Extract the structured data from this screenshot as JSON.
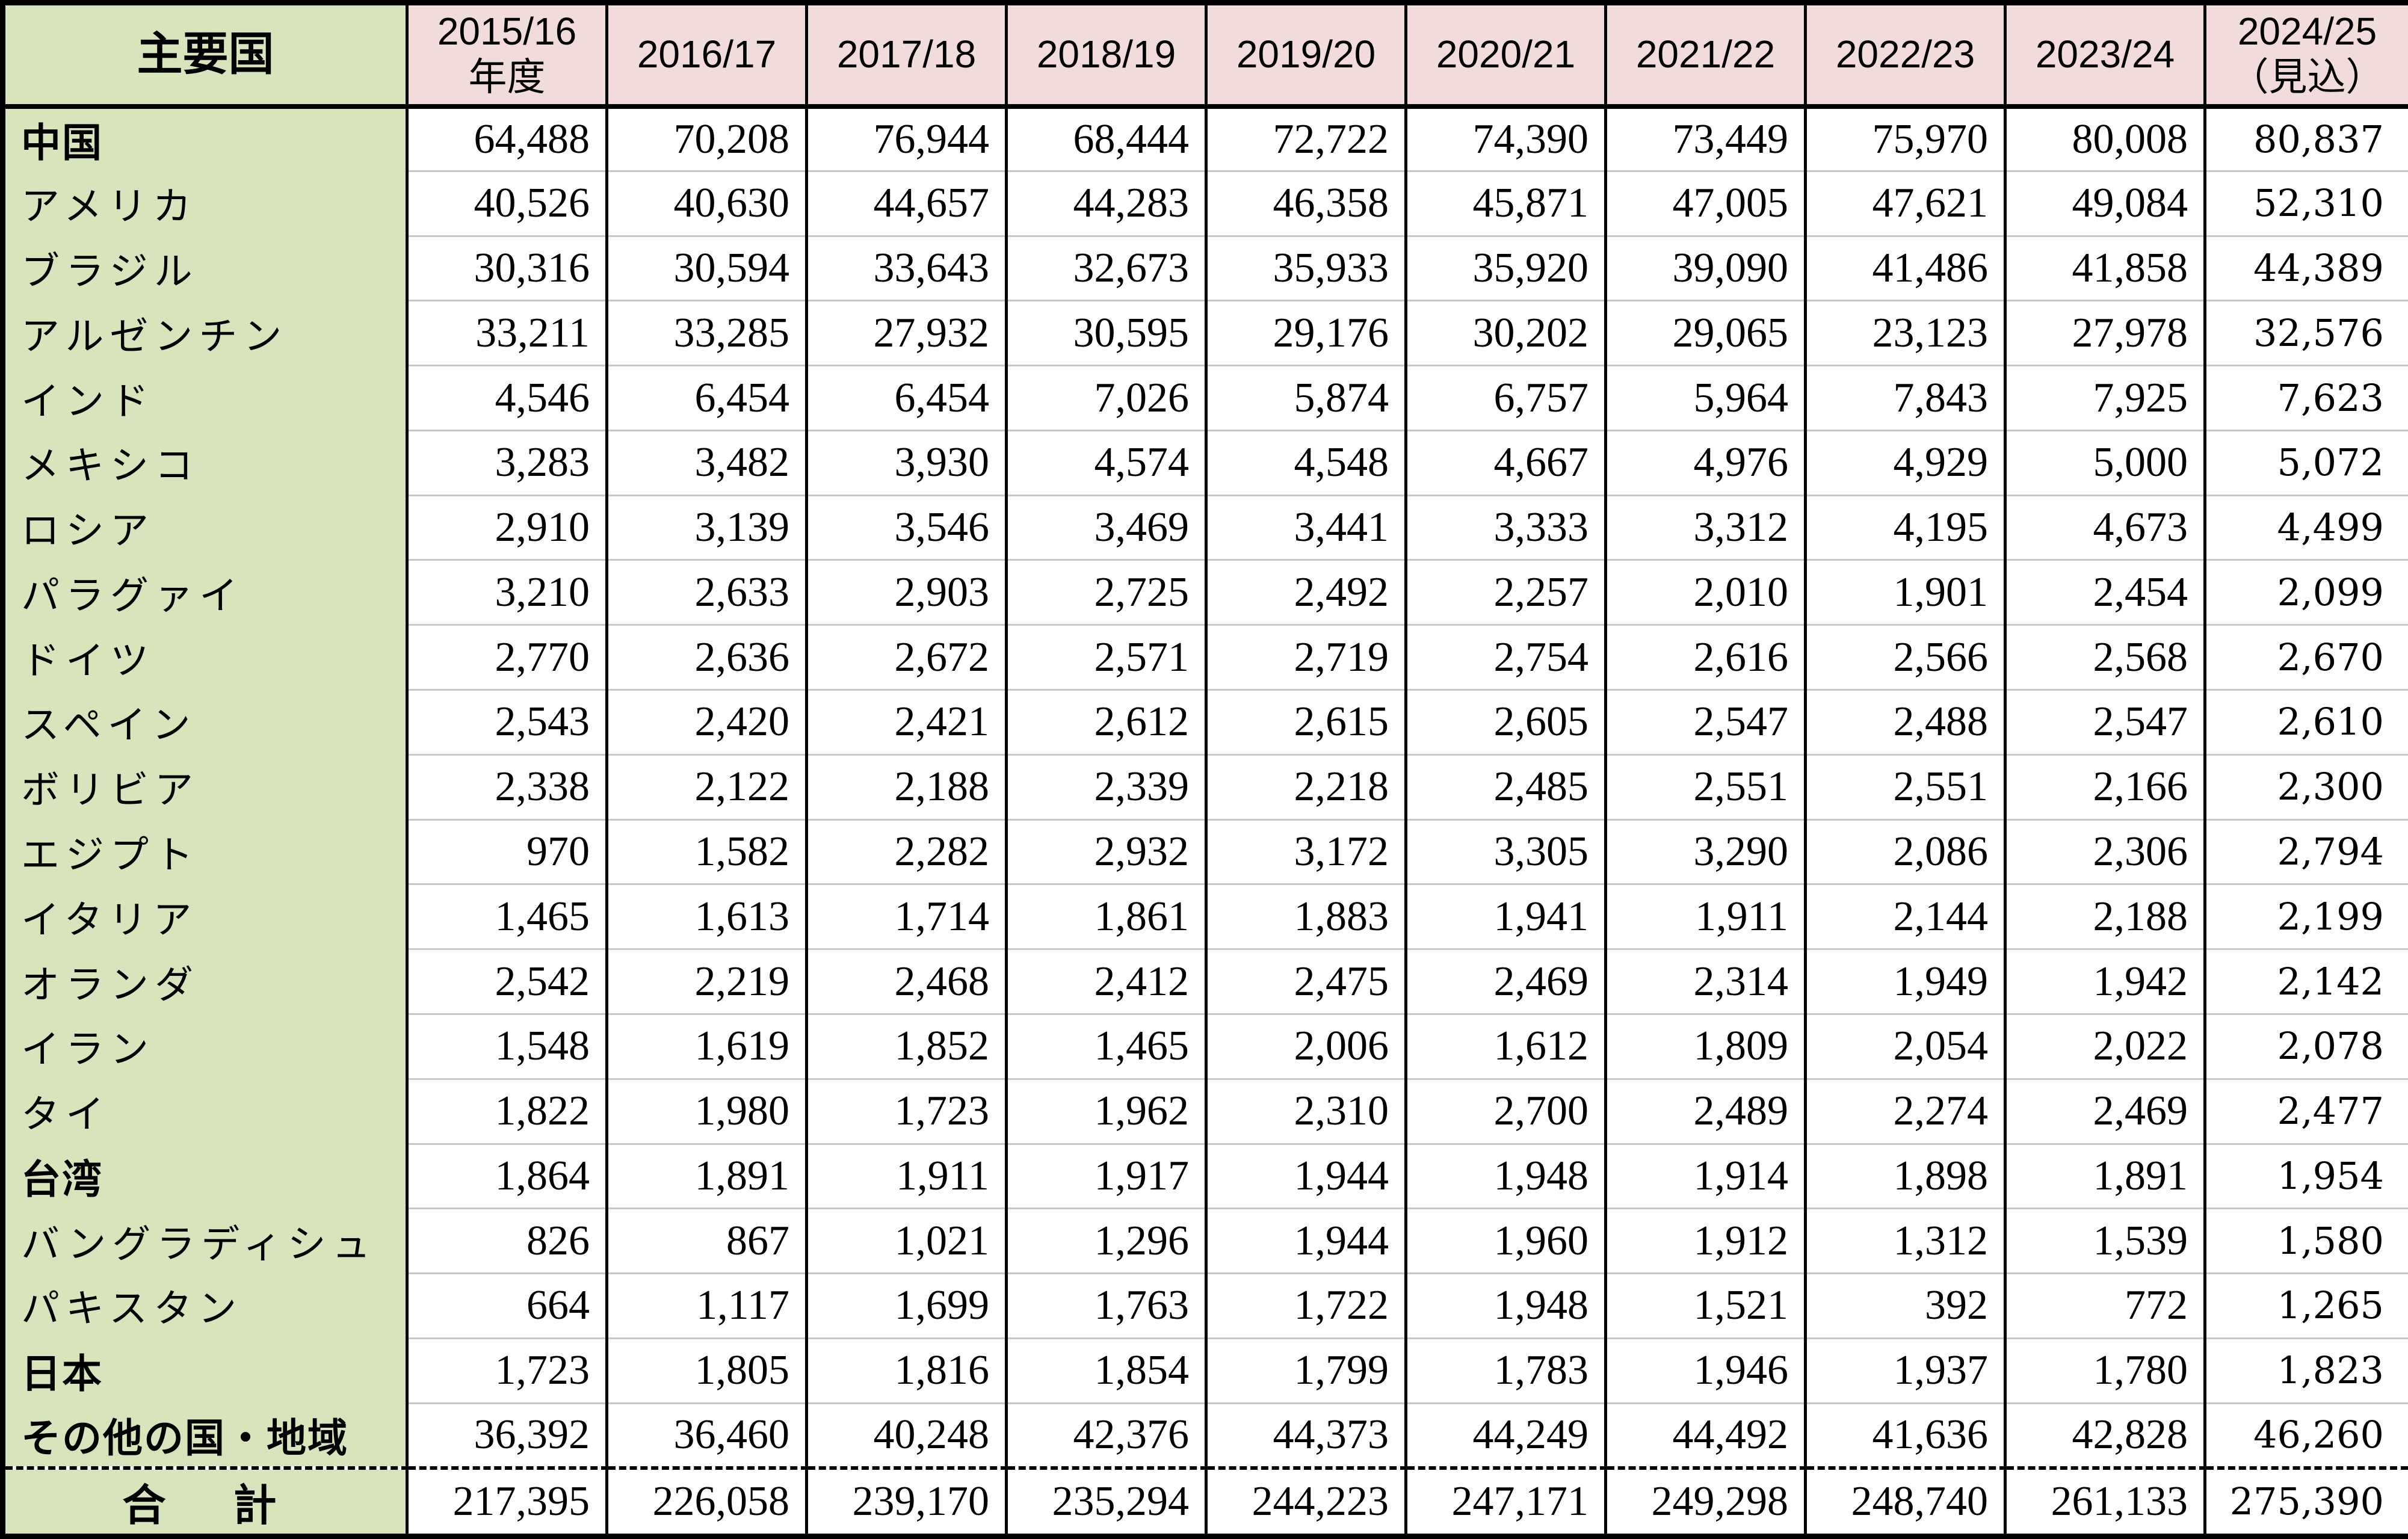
{
  "table": {
    "corner_header": "主要国",
    "year_headers": [
      {
        "line1": "2015/16",
        "line2": "年度"
      },
      {
        "line1": "2016/17",
        "line2": ""
      },
      {
        "line1": "2017/18",
        "line2": ""
      },
      {
        "line1": "2018/19",
        "line2": ""
      },
      {
        "line1": "2019/20",
        "line2": ""
      },
      {
        "line1": "2020/21",
        "line2": ""
      },
      {
        "line1": "2021/22",
        "line2": ""
      },
      {
        "line1": "2022/23",
        "line2": ""
      },
      {
        "line1": "2023/24",
        "line2": ""
      },
      {
        "line1": "2024/25",
        "line2": "（見込）"
      }
    ],
    "rows": [
      {
        "label": "中国",
        "emphasis": true,
        "values": [
          "64,488",
          "70,208",
          "76,944",
          "68,444",
          "72,722",
          "74,390",
          "73,449",
          "75,970",
          "80,008",
          "80,837"
        ]
      },
      {
        "label": "アメリカ",
        "emphasis": false,
        "values": [
          "40,526",
          "40,630",
          "44,657",
          "44,283",
          "46,358",
          "45,871",
          "47,005",
          "47,621",
          "49,084",
          "52,310"
        ]
      },
      {
        "label": "ブラジル",
        "emphasis": false,
        "values": [
          "30,316",
          "30,594",
          "33,643",
          "32,673",
          "35,933",
          "35,920",
          "39,090",
          "41,486",
          "41,858",
          "44,389"
        ]
      },
      {
        "label": "アルゼンチン",
        "emphasis": false,
        "values": [
          "33,211",
          "33,285",
          "27,932",
          "30,595",
          "29,176",
          "30,202",
          "29,065",
          "23,123",
          "27,978",
          "32,576"
        ]
      },
      {
        "label": "インド",
        "emphasis": false,
        "values": [
          "4,546",
          "6,454",
          "6,454",
          "7,026",
          "5,874",
          "6,757",
          "5,964",
          "7,843",
          "7,925",
          "7,623"
        ]
      },
      {
        "label": "メキシコ",
        "emphasis": false,
        "values": [
          "3,283",
          "3,482",
          "3,930",
          "4,574",
          "4,548",
          "4,667",
          "4,976",
          "4,929",
          "5,000",
          "5,072"
        ]
      },
      {
        "label": "ロシア",
        "emphasis": false,
        "values": [
          "2,910",
          "3,139",
          "3,546",
          "3,469",
          "3,441",
          "3,333",
          "3,312",
          "4,195",
          "4,673",
          "4,499"
        ]
      },
      {
        "label": "パラグァイ",
        "emphasis": false,
        "values": [
          "3,210",
          "2,633",
          "2,903",
          "2,725",
          "2,492",
          "2,257",
          "2,010",
          "1,901",
          "2,454",
          "2,099"
        ]
      },
      {
        "label": "ドイツ",
        "emphasis": false,
        "values": [
          "2,770",
          "2,636",
          "2,672",
          "2,571",
          "2,719",
          "2,754",
          "2,616",
          "2,566",
          "2,568",
          "2,670"
        ]
      },
      {
        "label": "スペイン",
        "emphasis": false,
        "values": [
          "2,543",
          "2,420",
          "2,421",
          "2,612",
          "2,615",
          "2,605",
          "2,547",
          "2,488",
          "2,547",
          "2,610"
        ]
      },
      {
        "label": "ボリビア",
        "emphasis": false,
        "values": [
          "2,338",
          "2,122",
          "2,188",
          "2,339",
          "2,218",
          "2,485",
          "2,551",
          "2,551",
          "2,166",
          "2,300"
        ]
      },
      {
        "label": "エジプト",
        "emphasis": false,
        "values": [
          "970",
          "1,582",
          "2,282",
          "2,932",
          "3,172",
          "3,305",
          "3,290",
          "2,086",
          "2,306",
          "2,794"
        ]
      },
      {
        "label": "イタリア",
        "emphasis": false,
        "values": [
          "1,465",
          "1,613",
          "1,714",
          "1,861",
          "1,883",
          "1,941",
          "1,911",
          "2,144",
          "2,188",
          "2,199"
        ]
      },
      {
        "label": "オランダ",
        "emphasis": false,
        "values": [
          "2,542",
          "2,219",
          "2,468",
          "2,412",
          "2,475",
          "2,469",
          "2,314",
          "1,949",
          "1,942",
          "2,142"
        ]
      },
      {
        "label": "イラン",
        "emphasis": false,
        "values": [
          "1,548",
          "1,619",
          "1,852",
          "1,465",
          "2,006",
          "1,612",
          "1,809",
          "2,054",
          "2,022",
          "2,078"
        ]
      },
      {
        "label": "タイ",
        "emphasis": false,
        "values": [
          "1,822",
          "1,980",
          "1,723",
          "1,962",
          "2,310",
          "2,700",
          "2,489",
          "2,274",
          "2,469",
          "2,477"
        ]
      },
      {
        "label": "台湾",
        "emphasis": true,
        "values": [
          "1,864",
          "1,891",
          "1,911",
          "1,917",
          "1,944",
          "1,948",
          "1,914",
          "1,898",
          "1,891",
          "1,954"
        ]
      },
      {
        "label": "バングラディシュ",
        "emphasis": false,
        "values": [
          "826",
          "867",
          "1,021",
          "1,296",
          "1,944",
          "1,960",
          "1,912",
          "1,312",
          "1,539",
          "1,580"
        ]
      },
      {
        "label": "パキスタン",
        "emphasis": false,
        "values": [
          "664",
          "1,117",
          "1,699",
          "1,763",
          "1,722",
          "1,948",
          "1,521",
          "392",
          "772",
          "1,265"
        ]
      },
      {
        "label": "日本",
        "emphasis": true,
        "values": [
          "1,723",
          "1,805",
          "1,816",
          "1,854",
          "1,799",
          "1,783",
          "1,946",
          "1,937",
          "1,780",
          "1,823"
        ]
      },
      {
        "label": "その他の国・地域",
        "emphasis": true,
        "values": [
          "36,392",
          "36,460",
          "40,248",
          "42,376",
          "44,373",
          "44,249",
          "44,492",
          "41,636",
          "42,828",
          "46,260"
        ]
      }
    ],
    "total_row": {
      "label": "合　計",
      "values": [
        "217,395",
        "226,058",
        "239,170",
        "235,294",
        "244,223",
        "247,171",
        "249,298",
        "248,740",
        "261,133",
        "275,390"
      ]
    }
  },
  "colors": {
    "header_pink": "#f2dcdb",
    "label_green": "#d8e4bc",
    "grid_gray": "#c8c8c8",
    "border_black": "#000000"
  },
  "chart_data": {
    "type": "table",
    "columns": [
      "主要国",
      "2015/16年度",
      "2016/17",
      "2017/18",
      "2018/19",
      "2019/20",
      "2020/21",
      "2021/22",
      "2022/23",
      "2023/24",
      "2024/25（見込）"
    ],
    "rows": [
      {
        "label": "中国",
        "values": [
          64488,
          70208,
          76944,
          68444,
          72722,
          74390,
          73449,
          75970,
          80008,
          80837
        ]
      },
      {
        "label": "アメリカ",
        "values": [
          40526,
          40630,
          44657,
          44283,
          46358,
          45871,
          47005,
          47621,
          49084,
          52310
        ]
      },
      {
        "label": "ブラジル",
        "values": [
          30316,
          30594,
          33643,
          32673,
          35933,
          35920,
          39090,
          41486,
          41858,
          44389
        ]
      },
      {
        "label": "アルゼンチン",
        "values": [
          33211,
          33285,
          27932,
          30595,
          29176,
          30202,
          29065,
          23123,
          27978,
          32576
        ]
      },
      {
        "label": "インド",
        "values": [
          4546,
          6454,
          6454,
          7026,
          5874,
          6757,
          5964,
          7843,
          7925,
          7623
        ]
      },
      {
        "label": "メキシコ",
        "values": [
          3283,
          3482,
          3930,
          4574,
          4548,
          4667,
          4976,
          4929,
          5000,
          5072
        ]
      },
      {
        "label": "ロシア",
        "values": [
          2910,
          3139,
          3546,
          3469,
          3441,
          3333,
          3312,
          4195,
          4673,
          4499
        ]
      },
      {
        "label": "パラグァイ",
        "values": [
          3210,
          2633,
          2903,
          2725,
          2492,
          2257,
          2010,
          1901,
          2454,
          2099
        ]
      },
      {
        "label": "ドイツ",
        "values": [
          2770,
          2636,
          2672,
          2571,
          2719,
          2754,
          2616,
          2566,
          2568,
          2670
        ]
      },
      {
        "label": "スペイン",
        "values": [
          2543,
          2420,
          2421,
          2612,
          2615,
          2605,
          2547,
          2488,
          2547,
          2610
        ]
      },
      {
        "label": "ボリビア",
        "values": [
          2338,
          2122,
          2188,
          2339,
          2218,
          2485,
          2551,
          2551,
          2166,
          2300
        ]
      },
      {
        "label": "エジプト",
        "values": [
          970,
          1582,
          2282,
          2932,
          3172,
          3305,
          3290,
          2086,
          2306,
          2794
        ]
      },
      {
        "label": "イタリア",
        "values": [
          1465,
          1613,
          1714,
          1861,
          1883,
          1941,
          1911,
          2144,
          2188,
          2199
        ]
      },
      {
        "label": "オランダ",
        "values": [
          2542,
          2219,
          2468,
          2412,
          2475,
          2469,
          2314,
          1949,
          1942,
          2142
        ]
      },
      {
        "label": "イラン",
        "values": [
          1548,
          1619,
          1852,
          1465,
          2006,
          1612,
          1809,
          2054,
          2022,
          2078
        ]
      },
      {
        "label": "タイ",
        "values": [
          1822,
          1980,
          1723,
          1962,
          2310,
          2700,
          2489,
          2274,
          2469,
          2477
        ]
      },
      {
        "label": "台湾",
        "values": [
          1864,
          1891,
          1911,
          1917,
          1944,
          1948,
          1914,
          1898,
          1891,
          1954
        ]
      },
      {
        "label": "バングラディシュ",
        "values": [
          826,
          867,
          1021,
          1296,
          1944,
          1960,
          1912,
          1312,
          1539,
          1580
        ]
      },
      {
        "label": "パキスタン",
        "values": [
          664,
          1117,
          1699,
          1763,
          1722,
          1948,
          1521,
          392,
          772,
          1265
        ]
      },
      {
        "label": "日本",
        "values": [
          1723,
          1805,
          1816,
          1854,
          1799,
          1783,
          1946,
          1937,
          1780,
          1823
        ]
      },
      {
        "label": "その他の国・地域",
        "values": [
          36392,
          36460,
          40248,
          42376,
          44373,
          44249,
          44492,
          41636,
          42828,
          46260
        ]
      },
      {
        "label": "合計",
        "values": [
          217395,
          226058,
          239170,
          235294,
          244223,
          247171,
          249298,
          248740,
          261133,
          275390
        ]
      }
    ]
  }
}
